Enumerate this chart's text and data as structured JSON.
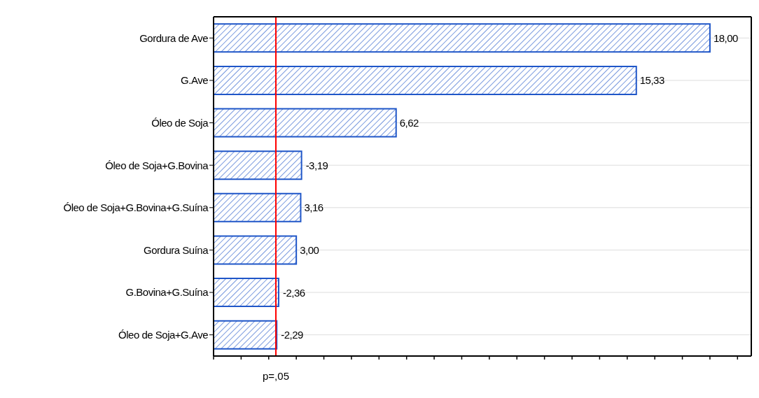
{
  "chart_data": {
    "type": "bar",
    "orientation": "horizontal",
    "categories": [
      "Gordura de Ave",
      "G.Ave",
      "Óleo de Soja",
      "Óleo de Soja+G.Bovina",
      "Óleo de Soja+G.Bovina+G.Suína",
      "Gordura Suína",
      "G.Bovina+G.Suína",
      "Óleo de Soja+G.Ave"
    ],
    "values": [
      18.0,
      15.33,
      6.62,
      3.19,
      3.16,
      3.0,
      2.36,
      2.29
    ],
    "value_labels": [
      "18,00",
      "15,33",
      "6,62",
      null,
      "3,16",
      "3,00",
      null,
      null
    ],
    "annotations": [
      {
        "text": "-3,19",
        "x": 3.19,
        "y": "Óleo de Soja+G.Bovina"
      },
      {
        "text": "-2,36",
        "x": 2.36,
        "y": "G.Bovina+G.Suína"
      },
      {
        "text": "-2,29",
        "x": 2.29,
        "y": "Óleo de Soja+G.Ave"
      }
    ],
    "color": "#1f56c8",
    "xlim": [
      0,
      19.5
    ],
    "xticks": [
      {
        "value": 0,
        "label": null
      },
      {
        "value": 1,
        "label": null
      },
      {
        "value": 2,
        "label": null
      },
      {
        "value": 3,
        "label": null
      },
      {
        "value": 4,
        "label": null
      },
      {
        "value": 5,
        "label": null
      },
      {
        "value": 6,
        "label": null
      },
      {
        "value": 7,
        "label": null
      },
      {
        "value": 8,
        "label": null
      },
      {
        "value": 9,
        "label": null
      },
      {
        "value": 10,
        "label": null
      },
      {
        "value": 11,
        "label": null
      },
      {
        "value": 12,
        "label": null
      },
      {
        "value": 13,
        "label": null
      },
      {
        "value": 14,
        "label": null
      },
      {
        "value": 15,
        "label": null
      },
      {
        "value": 16,
        "label": null
      },
      {
        "value": 17,
        "label": null
      },
      {
        "value": 18,
        "label": null
      },
      {
        "value": 19,
        "label": null
      }
    ],
    "ref_lines": [
      {
        "axis": "x",
        "value": 2.26,
        "label": "p=,05",
        "color": "#ff0000"
      }
    ],
    "grid": "y",
    "legend": false
  }
}
